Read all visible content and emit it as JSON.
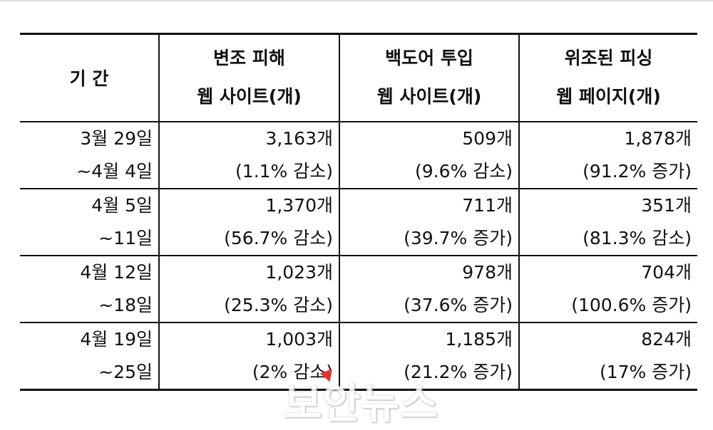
{
  "table": {
    "header": {
      "period_label": "기 간",
      "columns": [
        {
          "line1": "변조 피해",
          "line2": "웹 사이트(개)"
        },
        {
          "line1": "백도어 투입",
          "line2": "웹 사이트(개)"
        },
        {
          "line1": "위조된 피싱",
          "line2": "웹 페이지(개)"
        }
      ]
    },
    "rows": [
      {
        "period": [
          "3월 29일",
          "~4월 4일"
        ],
        "cells": [
          {
            "count": "3,163개",
            "change": "(1.1% 감소)"
          },
          {
            "count": "509개",
            "change": "(9.6% 감소)"
          },
          {
            "count": "1,878개",
            "change": "(91.2% 증가)"
          }
        ]
      },
      {
        "period": [
          "4월 5일",
          "~11일"
        ],
        "cells": [
          {
            "count": "1,370개",
            "change": "(56.7% 감소)"
          },
          {
            "count": "711개",
            "change": "(39.7% 증가)"
          },
          {
            "count": "351개",
            "change": "(81.3% 감소)"
          }
        ]
      },
      {
        "period": [
          "4월 12일",
          "~18일"
        ],
        "cells": [
          {
            "count": "1,023개",
            "change": "(25.3% 감소)"
          },
          {
            "count": "978개",
            "change": "(37.6% 증가)"
          },
          {
            "count": "704개",
            "change": "(100.6% 증가)"
          }
        ]
      },
      {
        "period": [
          "4월 19일",
          "~25일"
        ],
        "cells": [
          {
            "count": "1,003개",
            "change": "(2% 감소)"
          },
          {
            "count": "1,185개",
            "change": "(21.2% 증가)"
          },
          {
            "count": "824개",
            "change": "(17% 증가)"
          }
        ]
      }
    ]
  },
  "watermark": {
    "text": "보안뉴스"
  }
}
